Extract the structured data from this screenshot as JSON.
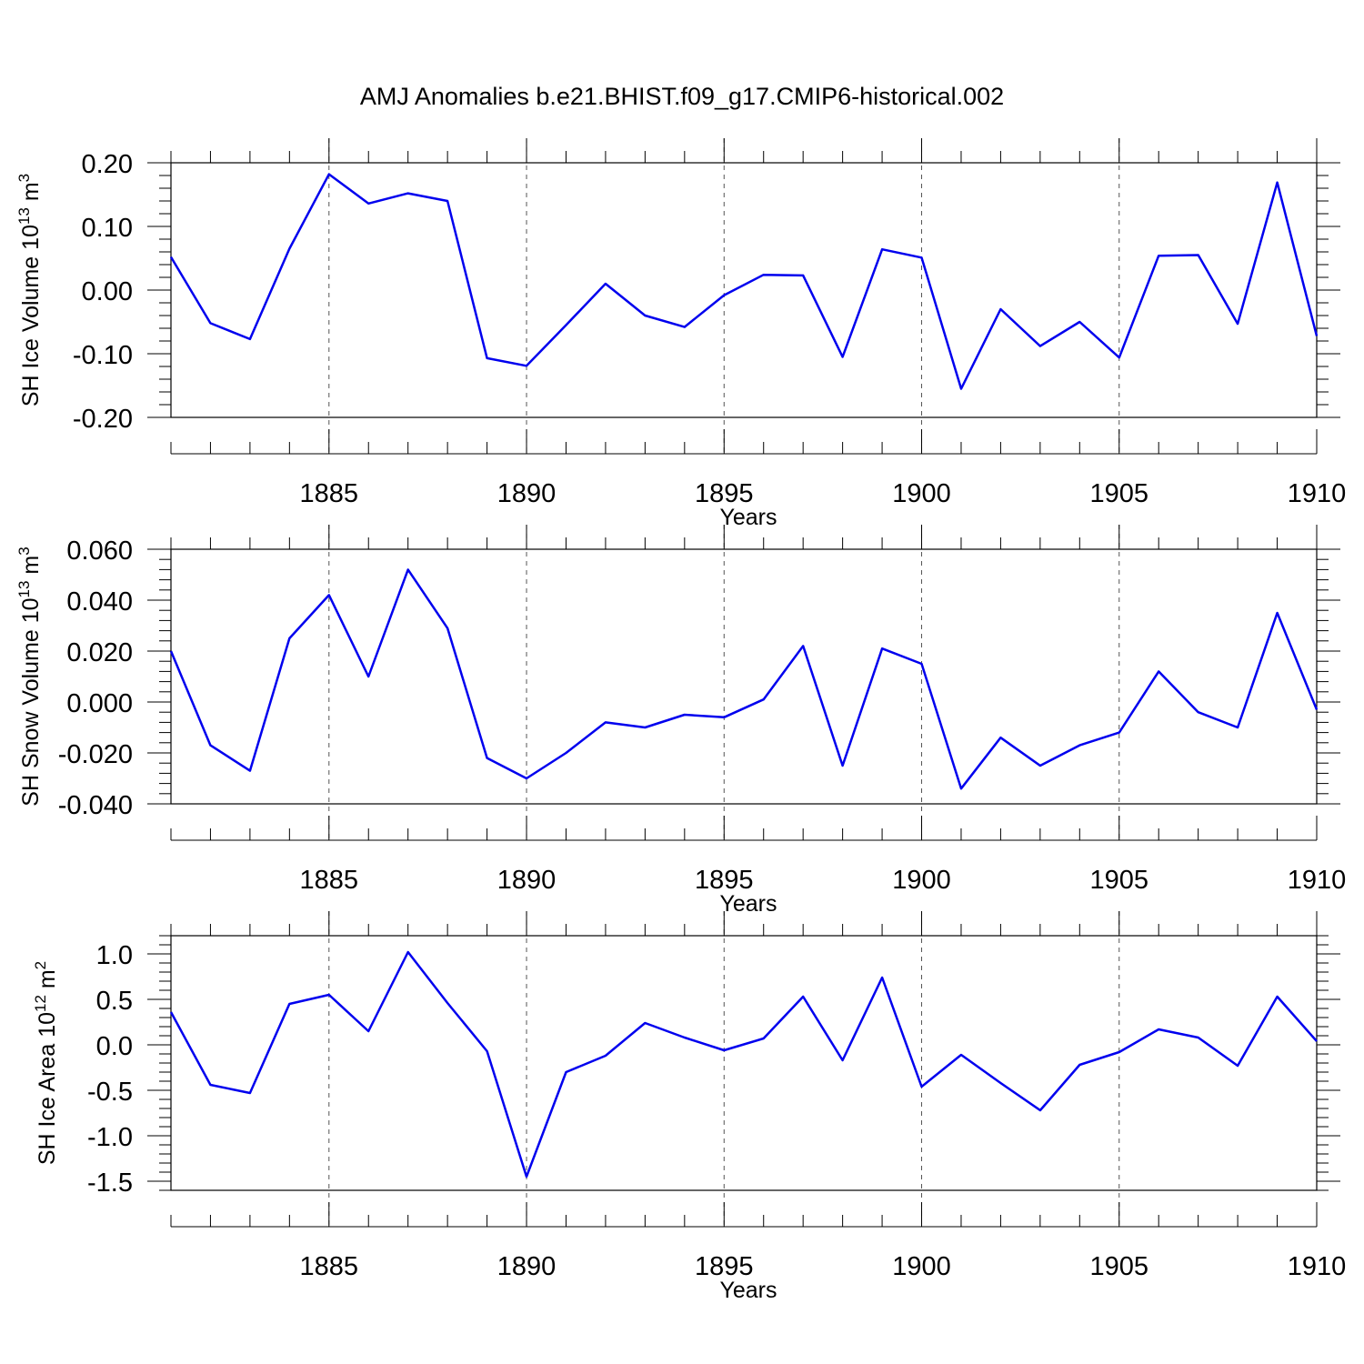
{
  "figure": {
    "title": "AMJ Anomalies b.e21.BHIST.f09_g17.CMIP6-historical.002"
  },
  "chart_data": [
    {
      "type": "line",
      "ylabel": "SH Ice Volume 10",
      "ylabel_exp": "13",
      "ylabel_unit": " m",
      "ylabel_unit_exp": "3",
      "xlabel": "Years",
      "xlim": [
        1881,
        1910
      ],
      "ylim": [
        -0.2,
        0.2
      ],
      "x_ticks": [
        1885,
        1890,
        1895,
        1900,
        1905,
        1910
      ],
      "x_tick_labels": [
        "1885",
        "1890",
        "1895",
        "1900",
        "1905",
        "1910"
      ],
      "y_ticks": [
        0.2,
        0.1,
        0.0,
        -0.1,
        -0.2
      ],
      "y_tick_labels": [
        "0.20",
        "0.10",
        "0.00",
        "-0.10",
        "-0.20"
      ],
      "grid": "vertical dashed at major x ticks",
      "line_color": "#0000ee",
      "x": [
        1881,
        1882,
        1883,
        1884,
        1885,
        1886,
        1887,
        1888,
        1889,
        1890,
        1891,
        1892,
        1893,
        1894,
        1895,
        1896,
        1897,
        1898,
        1899,
        1900,
        1901,
        1902,
        1903,
        1904,
        1905,
        1906,
        1907,
        1908,
        1909,
        1910
      ],
      "values": [
        0.052,
        -0.052,
        -0.077,
        0.065,
        0.182,
        0.136,
        0.152,
        0.14,
        -0.107,
        -0.119,
        -0.055,
        0.01,
        -0.04,
        -0.058,
        -0.008,
        0.024,
        0.023,
        -0.105,
        0.064,
        0.051,
        -0.155,
        -0.03,
        -0.088,
        -0.05,
        -0.106,
        0.054,
        0.055,
        -0.053,
        0.169,
        -0.072
      ]
    },
    {
      "type": "line",
      "ylabel": "SH Snow Volume 10",
      "ylabel_exp": "13",
      "ylabel_unit": " m",
      "ylabel_unit_exp": "3",
      "xlabel": "Years",
      "xlim": [
        1881,
        1910
      ],
      "ylim": [
        -0.04,
        0.06
      ],
      "x_ticks": [
        1885,
        1890,
        1895,
        1900,
        1905,
        1910
      ],
      "x_tick_labels": [
        "1885",
        "1890",
        "1895",
        "1900",
        "1905",
        "1910"
      ],
      "y_ticks": [
        0.06,
        0.04,
        0.02,
        0.0,
        -0.02,
        -0.04
      ],
      "y_tick_labels": [
        "0.060",
        "0.040",
        "0.020",
        "0.000",
        "-0.020",
        "-0.040"
      ],
      "grid": "vertical dashed at major x ticks",
      "line_color": "#0000ee",
      "x": [
        1881,
        1882,
        1883,
        1884,
        1885,
        1886,
        1887,
        1888,
        1889,
        1890,
        1891,
        1892,
        1893,
        1894,
        1895,
        1896,
        1897,
        1898,
        1899,
        1900,
        1901,
        1902,
        1903,
        1904,
        1905,
        1906,
        1907,
        1908,
        1909,
        1910
      ],
      "values": [
        0.02,
        -0.017,
        -0.027,
        0.025,
        0.042,
        0.01,
        0.052,
        0.029,
        -0.022,
        -0.03,
        -0.02,
        -0.008,
        -0.01,
        -0.005,
        -0.006,
        0.001,
        0.022,
        -0.025,
        0.021,
        0.015,
        -0.034,
        -0.014,
        -0.025,
        -0.017,
        -0.012,
        0.012,
        -0.004,
        -0.01,
        0.035,
        -0.003
      ]
    },
    {
      "type": "line",
      "ylabel": "SH Ice Area 10",
      "ylabel_exp": "12",
      "ylabel_unit": " m",
      "ylabel_unit_exp": "2",
      "xlabel": "Years",
      "xlim": [
        1881,
        1910
      ],
      "ylim": [
        -1.6,
        1.2
      ],
      "x_ticks": [
        1885,
        1890,
        1895,
        1900,
        1905,
        1910
      ],
      "x_tick_labels": [
        "1885",
        "1890",
        "1895",
        "1900",
        "1905",
        "1910"
      ],
      "y_ticks": [
        1.0,
        0.5,
        0.0,
        -0.5,
        -1.0,
        -1.5
      ],
      "y_tick_labels": [
        "1.0",
        "0.5",
        "0.0",
        "-0.5",
        "-1.0",
        "-1.5"
      ],
      "grid": "vertical dashed at major x ticks",
      "line_color": "#0000ee",
      "x": [
        1881,
        1882,
        1883,
        1884,
        1885,
        1886,
        1887,
        1888,
        1889,
        1890,
        1891,
        1892,
        1893,
        1894,
        1895,
        1896,
        1897,
        1898,
        1899,
        1900,
        1901,
        1902,
        1903,
        1904,
        1905,
        1906,
        1907,
        1908,
        1909,
        1910
      ],
      "values": [
        0.36,
        -0.44,
        -0.53,
        0.45,
        0.55,
        0.15,
        1.02,
        0.46,
        -0.07,
        -1.45,
        -0.3,
        -0.12,
        0.24,
        0.08,
        -0.06,
        0.07,
        0.53,
        -0.17,
        0.74,
        -0.46,
        -0.11,
        -0.42,
        -0.72,
        -0.22,
        -0.08,
        0.17,
        0.08,
        -0.23,
        0.53,
        0.04
      ]
    }
  ]
}
